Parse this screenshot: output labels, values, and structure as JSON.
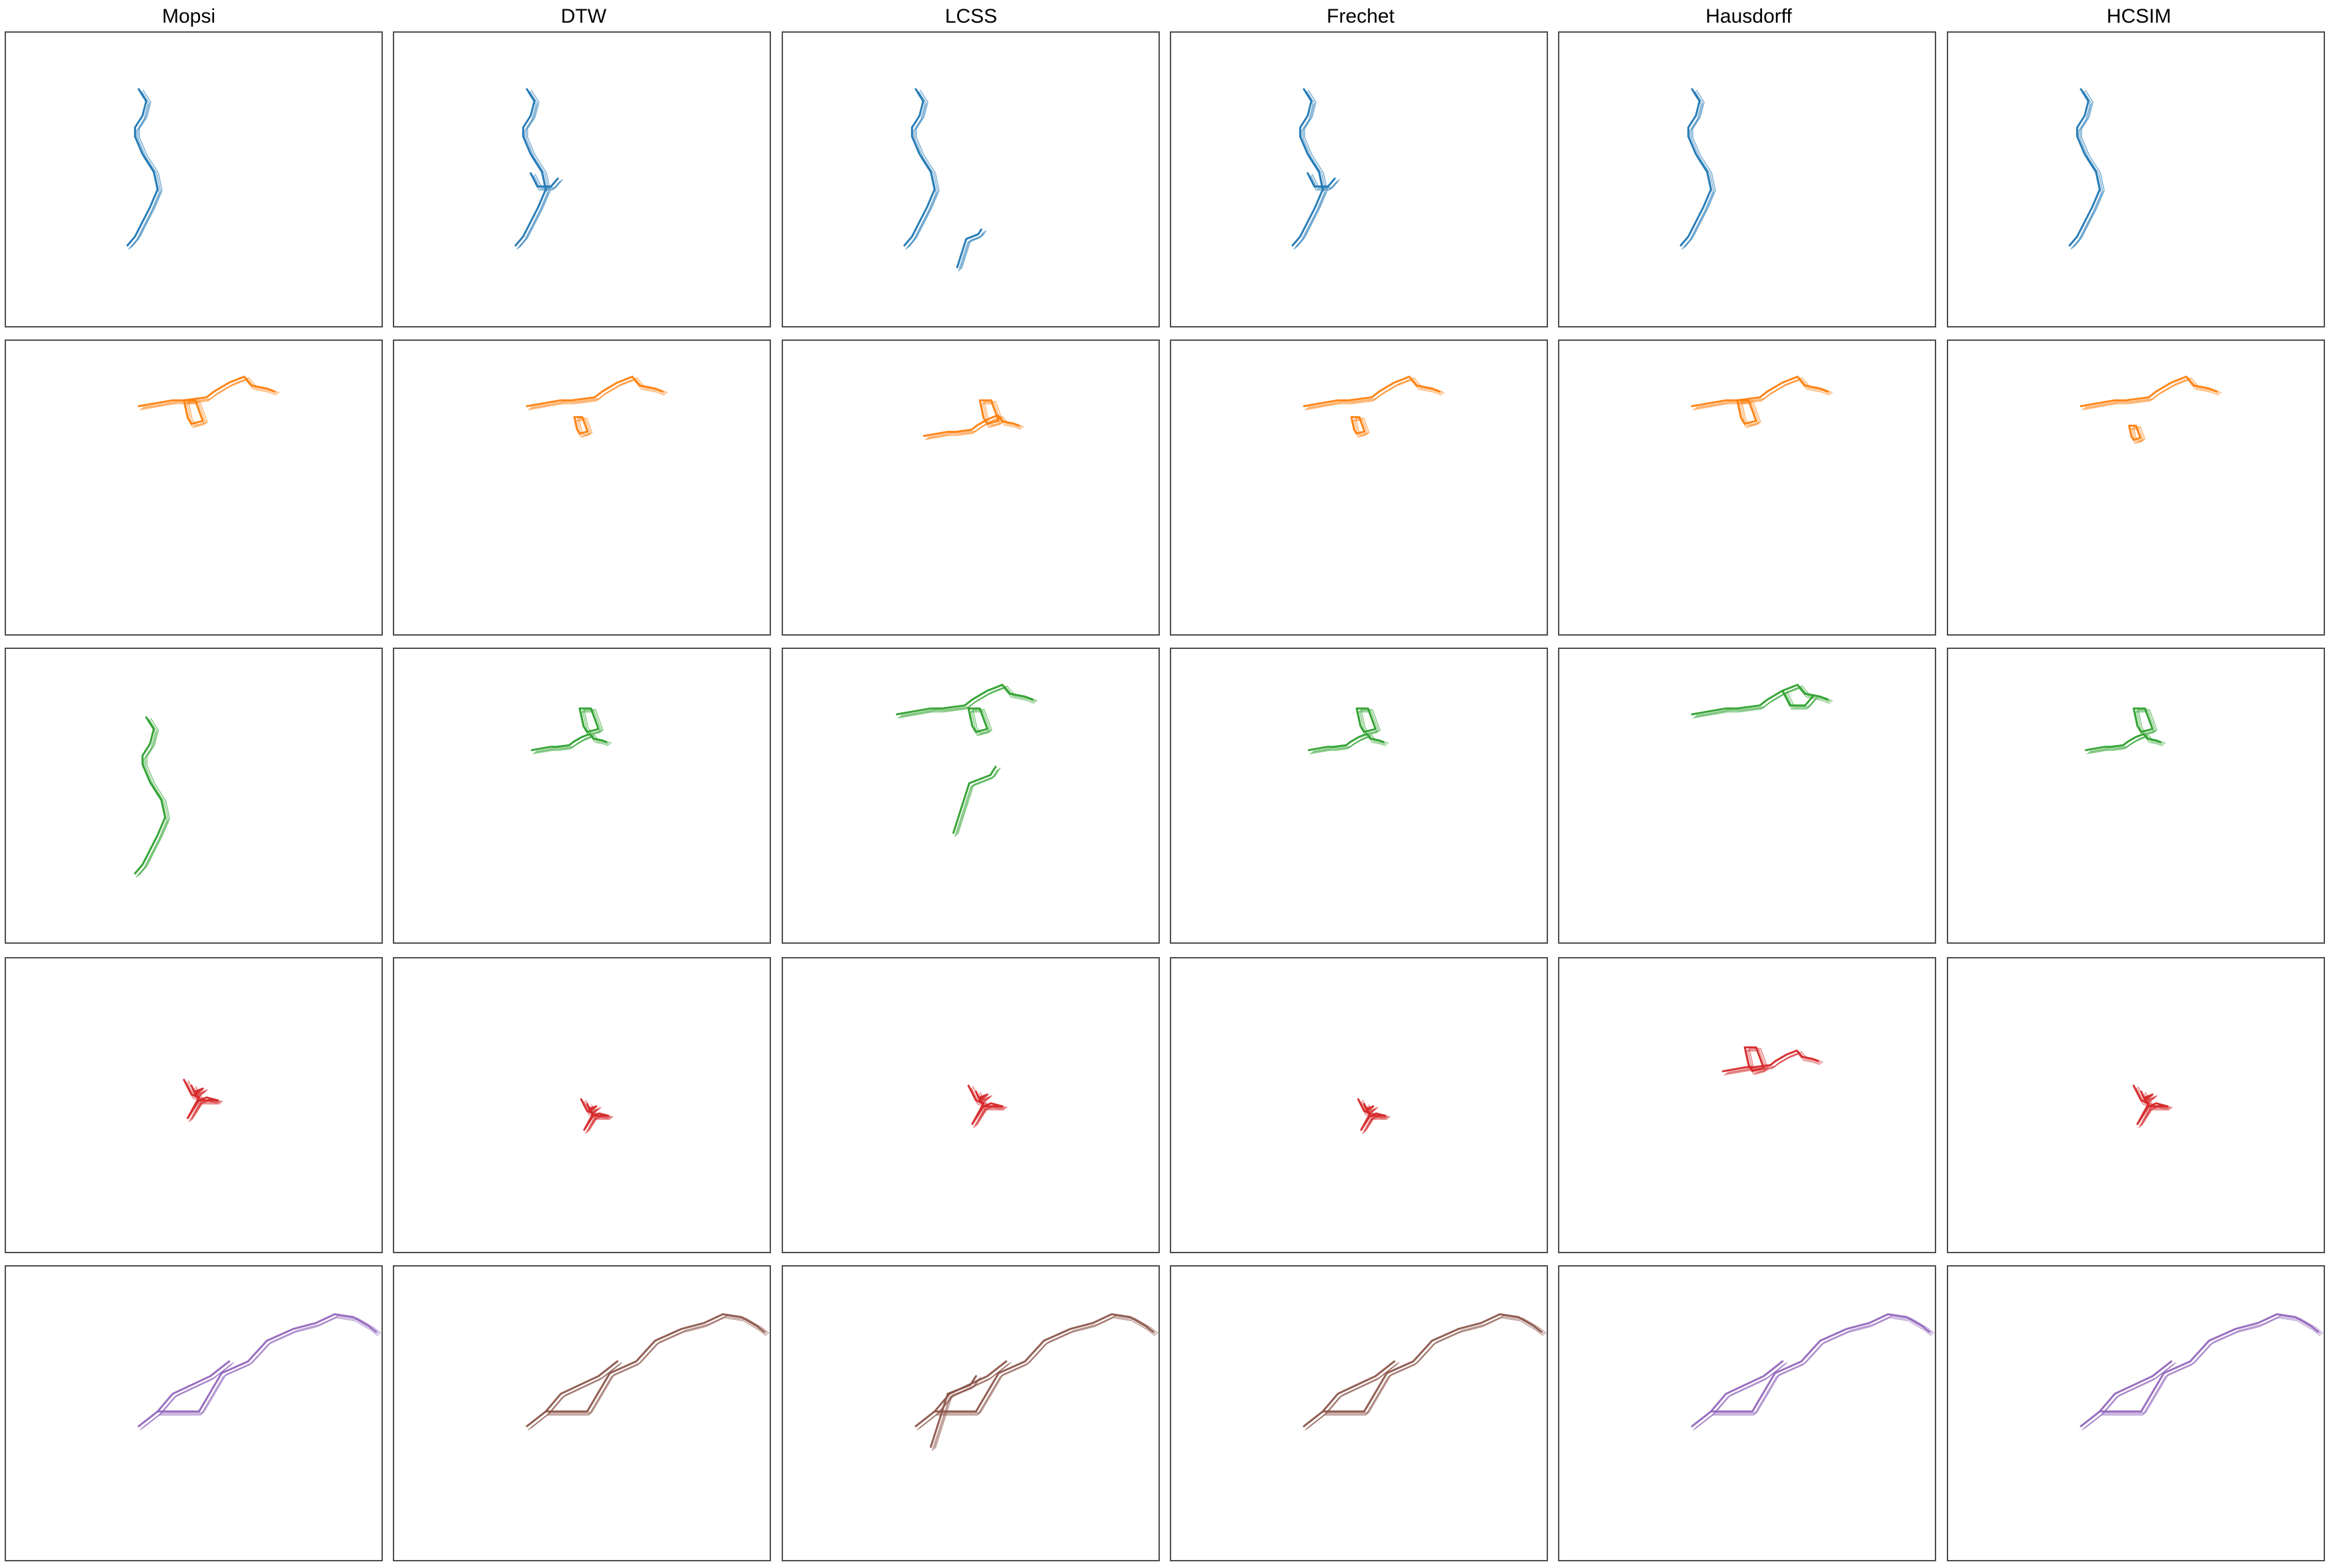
{
  "chart_data": {
    "type": "line",
    "columns": [
      "Mopsi",
      "DTW",
      "LCSS",
      "Frechet",
      "Hausdorff",
      "HCSIM"
    ],
    "row_colors": [
      "#1f77b4",
      "#ff7f0e",
      "#2ca02c",
      "#d62728",
      "#9467bd"
    ],
    "alt_color": "#8c564b",
    "grid": false,
    "shapes": {
      "ns_route": [
        [
          0.41,
          0.22
        ],
        [
          0.43,
          0.26
        ],
        [
          0.42,
          0.31
        ],
        [
          0.4,
          0.35
        ],
        [
          0.4,
          0.38
        ],
        [
          0.42,
          0.44
        ],
        [
          0.45,
          0.5
        ],
        [
          0.46,
          0.56
        ],
        [
          0.44,
          0.62
        ],
        [
          0.42,
          0.67
        ],
        [
          0.4,
          0.72
        ],
        [
          0.38,
          0.75
        ]
      ],
      "branch_spur": [
        [
          0.4,
          0.38
        ],
        [
          0.43,
          0.26
        ],
        [
          0.47,
          0.24
        ],
        [
          0.48,
          0.22
        ]
      ],
      "ew_route": [
        [
          0.36,
          0.23
        ],
        [
          0.45,
          0.21
        ],
        [
          0.48,
          0.21
        ],
        [
          0.54,
          0.2
        ],
        [
          0.56,
          0.18
        ],
        [
          0.6,
          0.15
        ],
        [
          0.64,
          0.13
        ],
        [
          0.66,
          0.16
        ],
        [
          0.7,
          0.17
        ],
        [
          0.72,
          0.18
        ]
      ],
      "loop_down": [
        [
          0.48,
          0.21
        ],
        [
          0.49,
          0.27
        ],
        [
          0.5,
          0.29
        ],
        [
          0.53,
          0.28
        ],
        [
          0.51,
          0.21
        ],
        [
          0.48,
          0.21
        ]
      ],
      "short_hook": [
        [
          0.6,
          0.15
        ],
        [
          0.62,
          0.2
        ],
        [
          0.66,
          0.2
        ],
        [
          0.68,
          0.17
        ]
      ],
      "star": [
        [
          0.48,
          0.42
        ],
        [
          0.5,
          0.47
        ],
        [
          0.52,
          0.48
        ],
        [
          0.49,
          0.55
        ],
        [
          0.52,
          0.49
        ],
        [
          0.54,
          0.48
        ],
        [
          0.57,
          0.49
        ],
        [
          0.52,
          0.49
        ],
        [
          0.51,
          0.46
        ],
        [
          0.53,
          0.45
        ],
        [
          0.51,
          0.47
        ],
        [
          0.5,
          0.44
        ]
      ],
      "long_diag": [
        [
          0.36,
          0.55
        ],
        [
          0.41,
          0.5
        ],
        [
          0.52,
          0.5
        ],
        [
          0.58,
          0.37
        ],
        [
          0.65,
          0.33
        ],
        [
          0.7,
          0.26
        ],
        [
          0.77,
          0.22
        ],
        [
          0.83,
          0.2
        ],
        [
          0.88,
          0.17
        ],
        [
          0.93,
          0.18
        ],
        [
          0.97,
          0.21
        ],
        [
          0.99,
          0.23
        ]
      ],
      "diag_branch": [
        [
          0.41,
          0.5
        ],
        [
          0.45,
          0.44
        ],
        [
          0.55,
          0.38
        ],
        [
          0.6,
          0.33
        ]
      ]
    }
  }
}
